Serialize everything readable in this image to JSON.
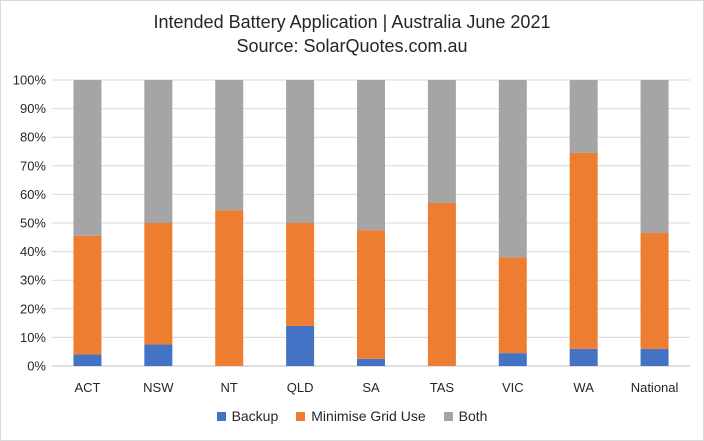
{
  "chart_data": {
    "type": "bar",
    "stacked": true,
    "title": "Intended Battery Application | Australia June 2021",
    "subtitle": "Source: SolarQuotes.com.au",
    "categories": [
      "ACT",
      "NSW",
      "NT",
      "QLD",
      "SA",
      "TAS",
      "VIC",
      "WA",
      "National"
    ],
    "series": [
      {
        "name": "Backup",
        "color": "#4472C4",
        "values": [
          4,
          7.5,
          0,
          14,
          2.5,
          0,
          4.5,
          6,
          6
        ]
      },
      {
        "name": "Minimise Grid Use",
        "color": "#ED7D31",
        "values": [
          41.5,
          42.5,
          54.5,
          36,
          45,
          57,
          33.5,
          68.5,
          40.5
        ]
      },
      {
        "name": "Both",
        "color": "#A5A5A5",
        "values": [
          54.5,
          50,
          45.5,
          50,
          52.5,
          43,
          62,
          25.5,
          53.5
        ]
      }
    ],
    "y_ticks": [
      "0%",
      "10%",
      "20%",
      "30%",
      "40%",
      "50%",
      "60%",
      "70%",
      "80%",
      "90%",
      "100%"
    ],
    "ylim": [
      0,
      100
    ],
    "xlabel": "",
    "ylabel": "",
    "legend_position": "bottom",
    "grid": true
  }
}
